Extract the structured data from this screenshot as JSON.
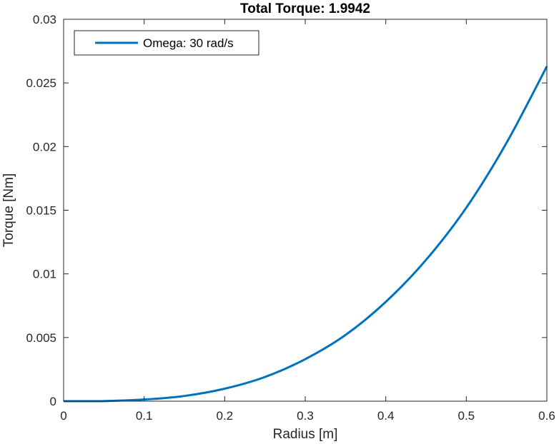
{
  "chart_data": {
    "type": "line",
    "title": "Total Torque: 1.9942",
    "xlabel": "Radius [m]",
    "ylabel": "Torque [Nm]",
    "xlim": [
      0,
      0.6
    ],
    "ylim": [
      0,
      0.03
    ],
    "xticks": [
      0,
      0.1,
      0.2,
      0.3,
      0.4,
      0.5,
      0.6
    ],
    "xtick_labels": [
      "0",
      "0.1",
      "0.2",
      "0.3",
      "0.4",
      "0.5",
      "0.6"
    ],
    "yticks": [
      0,
      0.005,
      0.01,
      0.015,
      0.02,
      0.025,
      0.03
    ],
    "ytick_labels": [
      "0",
      "0.005",
      "0.01",
      "0.015",
      "0.02",
      "0.025",
      "0.03"
    ],
    "grid": false,
    "legend_position": "top-left",
    "series": [
      {
        "name": "Omega: 30 rad/s",
        "color": "#0072BD",
        "x": [
          0,
          0.05,
          0.1,
          0.15,
          0.2,
          0.25,
          0.3,
          0.35,
          0.4,
          0.45,
          0.5,
          0.55,
          0.6
        ],
        "y": [
          0,
          1e-05,
          0.00013,
          0.00041,
          0.00098,
          0.0019,
          0.0033,
          0.0052,
          0.0078,
          0.0111,
          0.0152,
          0.0203,
          0.0263
        ]
      }
    ]
  }
}
